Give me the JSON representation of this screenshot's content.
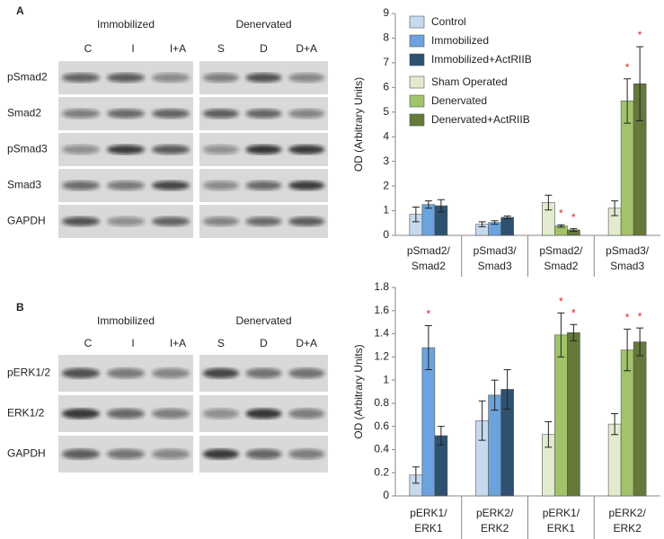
{
  "blots": [
    {
      "label": "A",
      "groups": [
        {
          "title": "Immobilized",
          "lanes": [
            "C",
            "I",
            "I+A"
          ]
        },
        {
          "title": "Denervated",
          "lanes": [
            "S",
            "D",
            "D+A"
          ]
        }
      ],
      "rows": [
        "pSmad2",
        "Smad2",
        "pSmad3",
        "Smad3",
        "GAPDH"
      ]
    },
    {
      "label": "B",
      "groups": [
        {
          "title": "Immobilized",
          "lanes": [
            "C",
            "I",
            "I+A"
          ]
        },
        {
          "title": "Denervated",
          "lanes": [
            "S",
            "D",
            "D+A"
          ]
        }
      ],
      "rows": [
        "pERK1/2",
        "ERK1/2",
        "GAPDH"
      ]
    }
  ],
  "chart_data": [
    {
      "type": "bar",
      "y_label": "OD (Arbitrary Units)",
      "categories": [
        "pSmad2/ Smad2",
        "pSmad3/ Smad3",
        "pSmad2/ Smad2",
        "pSmad3/ Smad3"
      ],
      "ylim": [
        0,
        9
      ],
      "yticks": [
        0,
        1,
        2,
        3,
        4,
        5,
        6,
        7,
        8,
        9
      ],
      "legend": "top-left",
      "series": [
        {
          "name": "Control",
          "color": "#c6d9ef",
          "values": [
            0.85,
            0.45,
            null,
            null
          ],
          "errors": [
            0.3,
            0.1,
            null,
            null
          ]
        },
        {
          "name": "Immobilized",
          "color": "#6ba3de",
          "values": [
            1.25,
            0.52,
            null,
            null
          ],
          "errors": [
            0.15,
            0.07,
            null,
            null
          ]
        },
        {
          "name": "Immobilized+ActRIIB",
          "color": "#2f5170",
          "values": [
            1.2,
            0.73,
            null,
            null
          ],
          "errors": [
            0.25,
            0.06,
            null,
            null
          ]
        },
        {
          "name": "Sham Operated",
          "color": "#e3ebcf",
          "values": [
            null,
            null,
            1.33,
            1.1
          ],
          "errors": [
            null,
            null,
            0.3,
            0.3
          ]
        },
        {
          "name": "Denervated",
          "color": "#a2c36a",
          "values": [
            null,
            null,
            0.38,
            5.45
          ],
          "errors": [
            null,
            null,
            0.05,
            0.9
          ],
          "significance": [
            null,
            null,
            "*",
            "*"
          ]
        },
        {
          "name": "Denervated+ActRIIB",
          "color": "#64793a",
          "values": [
            null,
            null,
            0.22,
            6.15
          ],
          "errors": [
            null,
            null,
            0.05,
            1.5
          ],
          "significance": [
            null,
            null,
            "*",
            "*"
          ]
        }
      ]
    },
    {
      "type": "bar",
      "y_label": "OD (Arbitrary Units)",
      "categories": [
        "pERK1/ ERK1",
        "pERK2/ ERK2",
        "pERK1/ ERK1",
        "pERK2/ ERK2"
      ],
      "ylim": [
        0,
        1.8
      ],
      "yticks": [
        0,
        0.2,
        0.4,
        0.6,
        0.8,
        1,
        1.2,
        1.4,
        1.6,
        1.8
      ],
      "series": [
        {
          "color": "#c6d9ef",
          "values": [
            0.18,
            0.65,
            null,
            null
          ],
          "errors": [
            0.07,
            0.17,
            null,
            null
          ]
        },
        {
          "color": "#6ba3de",
          "values": [
            1.28,
            0.87,
            null,
            null
          ],
          "errors": [
            0.19,
            0.13,
            null,
            null
          ],
          "significance": [
            "*",
            null,
            null,
            null
          ]
        },
        {
          "color": "#2f5170",
          "values": [
            0.52,
            0.92,
            null,
            null
          ],
          "errors": [
            0.08,
            0.17,
            null,
            null
          ]
        },
        {
          "color": "#e3ebcf",
          "values": [
            null,
            null,
            0.53,
            0.62
          ],
          "errors": [
            null,
            null,
            0.11,
            0.09
          ]
        },
        {
          "color": "#a2c36a",
          "values": [
            null,
            null,
            1.39,
            1.26
          ],
          "errors": [
            null,
            null,
            0.19,
            0.18
          ],
          "significance": [
            null,
            null,
            "*",
            "*"
          ]
        },
        {
          "color": "#64793a",
          "values": [
            null,
            null,
            1.41,
            1.33
          ],
          "errors": [
            null,
            null,
            0.07,
            0.12
          ],
          "significance": [
            null,
            null,
            "*",
            "*"
          ]
        }
      ]
    }
  ]
}
